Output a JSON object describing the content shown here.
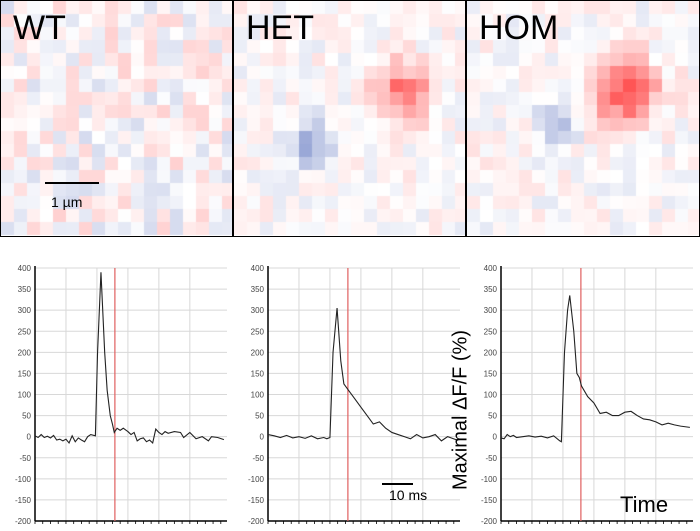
{
  "panels": [
    {
      "label": "WT",
      "scale_bar": "1 µm"
    },
    {
      "label": "HET"
    },
    {
      "label": "HOM"
    }
  ],
  "colors": {
    "positive": "#e04040",
    "negative": "#4050b0",
    "trace": "#222222",
    "marker": "#e06060",
    "grid": "#d8d8d8"
  },
  "chart_data": [
    {
      "type": "line",
      "title": "WT",
      "ylim": [
        -200,
        400
      ],
      "yticks": [
        400,
        350,
        300,
        250,
        200,
        150,
        100,
        50,
        0,
        -50,
        -100,
        -150,
        -200
      ],
      "xlim": [
        0,
        62
      ],
      "xgrid": [
        10,
        20,
        30,
        40,
        50
      ],
      "marker_x": 25.8,
      "points": [
        [
          0,
          2
        ],
        [
          1,
          -2
        ],
        [
          2,
          5
        ],
        [
          3,
          -2
        ],
        [
          4,
          1
        ],
        [
          5,
          -3
        ],
        [
          6,
          3
        ],
        [
          7,
          -8
        ],
        [
          8,
          -6
        ],
        [
          9,
          -10
        ],
        [
          10,
          -6
        ],
        [
          11,
          -15
        ],
        [
          12,
          2
        ],
        [
          13,
          -12
        ],
        [
          14,
          -3
        ],
        [
          15,
          -8
        ],
        [
          16,
          -12
        ],
        [
          17,
          0
        ],
        [
          18,
          5
        ],
        [
          19.5,
          2
        ],
        [
          20.2,
          200
        ],
        [
          21.3,
          390
        ],
        [
          22.5,
          200
        ],
        [
          23.3,
          110
        ],
        [
          24.3,
          50
        ],
        [
          25,
          30
        ],
        [
          25.6,
          10
        ],
        [
          26.5,
          20
        ],
        [
          27.5,
          15
        ],
        [
          28.5,
          20
        ],
        [
          30,
          12
        ],
        [
          31,
          5
        ],
        [
          32,
          10
        ],
        [
          33,
          -10
        ],
        [
          34,
          -5
        ],
        [
          35,
          -3
        ],
        [
          36,
          -12
        ],
        [
          37,
          -8
        ],
        [
          38,
          -15
        ],
        [
          39,
          18
        ],
        [
          40,
          10
        ],
        [
          41,
          5
        ],
        [
          42,
          12
        ],
        [
          43,
          8
        ],
        [
          45,
          12
        ],
        [
          47,
          10
        ],
        [
          48,
          -2
        ],
        [
          50,
          10
        ],
        [
          52,
          -5
        ],
        [
          54,
          0
        ],
        [
          56,
          -10
        ],
        [
          57,
          0
        ],
        [
          59,
          -2
        ],
        [
          61,
          -7
        ]
      ]
    },
    {
      "type": "line",
      "title": "HET",
      "ylim": [
        -200,
        400
      ],
      "yticks": [
        400,
        350,
        300,
        250,
        200,
        150,
        100,
        50,
        0,
        -50,
        -100,
        -150,
        -200
      ],
      "xlim": [
        0,
        62
      ],
      "xgrid": [
        10,
        20,
        30,
        40,
        50
      ],
      "marker_x": 25.8,
      "points": [
        [
          0,
          5
        ],
        [
          2,
          2
        ],
        [
          4,
          -2
        ],
        [
          6,
          3
        ],
        [
          8,
          -3
        ],
        [
          10,
          0
        ],
        [
          12,
          -4
        ],
        [
          14,
          2
        ],
        [
          16,
          -5
        ],
        [
          18,
          -2
        ],
        [
          19,
          -5
        ],
        [
          20,
          -2
        ],
        [
          21,
          200
        ],
        [
          22.3,
          305
        ],
        [
          23.5,
          180
        ],
        [
          24.5,
          125
        ],
        [
          26,
          110
        ],
        [
          28,
          90
        ],
        [
          30,
          70
        ],
        [
          32,
          50
        ],
        [
          34,
          30
        ],
        [
          36,
          35
        ],
        [
          38,
          20
        ],
        [
          40,
          10
        ],
        [
          42,
          5
        ],
        [
          44,
          0
        ],
        [
          46,
          -5
        ],
        [
          48,
          5
        ],
        [
          50,
          -3
        ],
        [
          52,
          0
        ],
        [
          54,
          5
        ],
        [
          56,
          -10
        ],
        [
          58,
          0
        ],
        [
          61,
          -8
        ]
      ],
      "scale_bar": "10 ms"
    },
    {
      "type": "line",
      "title": "HOM",
      "ylim": [
        -200,
        400
      ],
      "yticks": [
        400,
        350,
        300,
        250,
        200,
        150,
        100,
        50,
        0,
        -50,
        -100,
        -150,
        -200
      ],
      "xlim": [
        0,
        62
      ],
      "xgrid": [
        10,
        20,
        30,
        40,
        50
      ],
      "marker_x": 25.8,
      "points": [
        [
          0,
          -3
        ],
        [
          1,
          -5
        ],
        [
          2,
          5
        ],
        [
          3,
          0
        ],
        [
          4,
          3
        ],
        [
          5,
          -2
        ],
        [
          7,
          0
        ],
        [
          9,
          2
        ],
        [
          11,
          -1
        ],
        [
          13,
          1
        ],
        [
          15,
          -3
        ],
        [
          17,
          2
        ],
        [
          19,
          -10
        ],
        [
          19.5,
          -12
        ],
        [
          20.5,
          200
        ],
        [
          21.5,
          300
        ],
        [
          22.2,
          335
        ],
        [
          23.5,
          250
        ],
        [
          24.5,
          150
        ],
        [
          25.3,
          140
        ],
        [
          26,
          120
        ],
        [
          28,
          95
        ],
        [
          30,
          80
        ],
        [
          32,
          55
        ],
        [
          34,
          58
        ],
        [
          36,
          50
        ],
        [
          38,
          50
        ],
        [
          40,
          58
        ],
        [
          42,
          60
        ],
        [
          44,
          50
        ],
        [
          46,
          42
        ],
        [
          48,
          40
        ],
        [
          50,
          35
        ],
        [
          52,
          28
        ],
        [
          54,
          32
        ],
        [
          56,
          28
        ],
        [
          58,
          25
        ],
        [
          61,
          22
        ]
      ],
      "ylabel": "Maximal ΔF/F (%)",
      "xlabel": "Time"
    }
  ]
}
